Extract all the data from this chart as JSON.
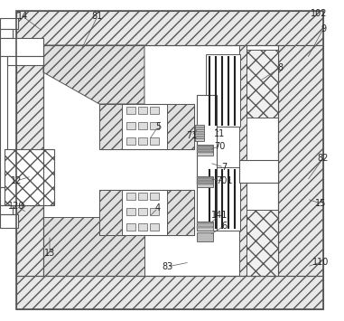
{
  "lc": "#555555",
  "lc2": "#333333",
  "hc": "#888888",
  "bg": "white",
  "labels": [
    "14",
    "81",
    "102",
    "9",
    "8",
    "5",
    "7",
    "71",
    "11",
    "70",
    "701",
    "82",
    "15",
    "12",
    "4",
    "6",
    "141",
    "120",
    "13",
    "83",
    "110"
  ]
}
